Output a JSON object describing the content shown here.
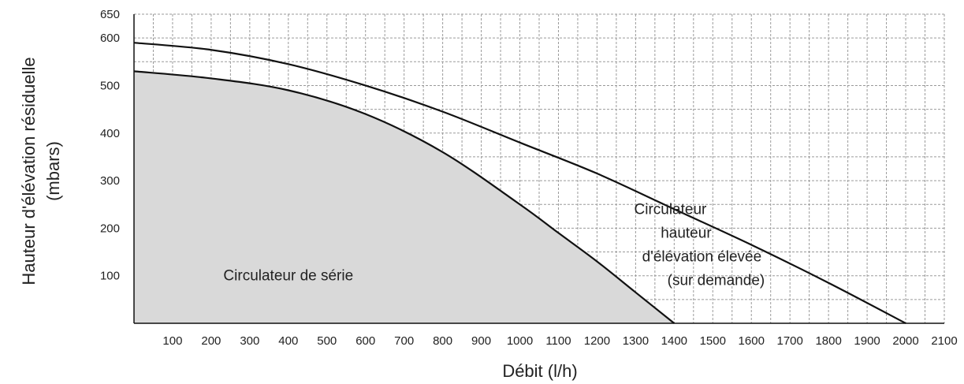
{
  "chart_data": {
    "type": "line",
    "title": "",
    "xlabel": "Débit (l/h)",
    "ylabel_line1": "Hauteur d'élévation résiduelle",
    "ylabel_line2": "(mbars)",
    "xlim": [
      0,
      2100
    ],
    "ylim": [
      0,
      650
    ],
    "x_ticks": [
      100,
      200,
      300,
      400,
      500,
      600,
      700,
      800,
      900,
      1000,
      1100,
      1200,
      1300,
      1400,
      1500,
      1600,
      1700,
      1800,
      1900,
      2000,
      2100
    ],
    "y_ticks": [
      100,
      200,
      300,
      400,
      500,
      600,
      650
    ],
    "grid": true,
    "series": [
      {
        "key": "standard",
        "x": [
          0,
          200,
          400,
          600,
          800,
          1000,
          1100,
          1200,
          1300,
          1400
        ],
        "y": [
          530,
          515,
          490,
          440,
          360,
          250,
          190,
          130,
          65,
          0
        ],
        "filled": true
      },
      {
        "key": "high",
        "x": [
          0,
          200,
          400,
          600,
          800,
          1000,
          1200,
          1400,
          1600,
          1800,
          2000
        ],
        "y": [
          590,
          575,
          545,
          500,
          445,
          380,
          315,
          240,
          165,
          85,
          0
        ],
        "filled": false
      }
    ],
    "annotations": [
      {
        "key": "standard",
        "lines": [
          "Circulateur de série"
        ],
        "x": 400,
        "y": 100
      },
      {
        "key": "high",
        "lines": [
          "Circulateur",
          "hauteur",
          "d'élévation élevée",
          "(sur demande)"
        ],
        "x": 1390,
        "y": 230
      }
    ]
  }
}
